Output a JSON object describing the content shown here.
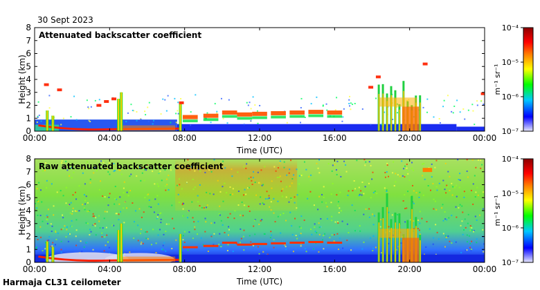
{
  "date": "30 Sept 2023",
  "footer": "Harmaja CL31 ceilometer",
  "chart_data": [
    {
      "type": "heatmap",
      "title": "Attenuated backscatter coefficient",
      "xlabel": "Time (UTC)",
      "ylabel": "Height (km)",
      "xticks": [
        "00:00",
        "04:00",
        "08:00",
        "12:00",
        "16:00",
        "20:00",
        "00:00"
      ],
      "xlim_hours": [
        0,
        24
      ],
      "yticks": [
        0,
        1,
        2,
        3,
        4,
        5,
        6,
        7,
        8
      ],
      "ylim_km": [
        0,
        8
      ],
      "colorbar": {
        "unit": "m⁻¹ sr⁻¹",
        "ticks": [
          "10⁻⁴",
          "10⁻⁵",
          "10⁻⁶",
          "10⁻⁷"
        ],
        "range": [
          1e-07,
          0.0001
        ],
        "scale": "log",
        "colors": [
          "#e8e8ff",
          "#0000ff",
          "#00c8ff",
          "#00ff00",
          "#ffff00",
          "#ff8000",
          "#ff0000",
          "#8b0000"
        ]
      }
    },
    {
      "type": "heatmap",
      "title": "Raw attenuated backscatter coefficient",
      "xlabel": "Time (UTC)",
      "ylabel": "Height (km)",
      "xticks": [
        "00:00",
        "04:00",
        "08:00",
        "12:00",
        "16:00",
        "20:00",
        "00:00"
      ],
      "xlim_hours": [
        0,
        24
      ],
      "yticks": [
        0,
        1,
        2,
        3,
        4,
        5,
        6,
        7,
        8
      ],
      "ylim_km": [
        0,
        8
      ],
      "colorbar": {
        "unit": "m⁻¹ sr⁻¹",
        "ticks": [
          "10⁻⁴",
          "10⁻⁵",
          "10⁻⁶",
          "10⁻⁷"
        ],
        "range": [
          1e-07,
          0.0001
        ],
        "scale": "log",
        "colors": [
          "#e8e8ff",
          "#0000ff",
          "#00c8ff",
          "#00ff00",
          "#ffff00",
          "#ff8000",
          "#ff0000",
          "#8b0000"
        ]
      }
    }
  ]
}
